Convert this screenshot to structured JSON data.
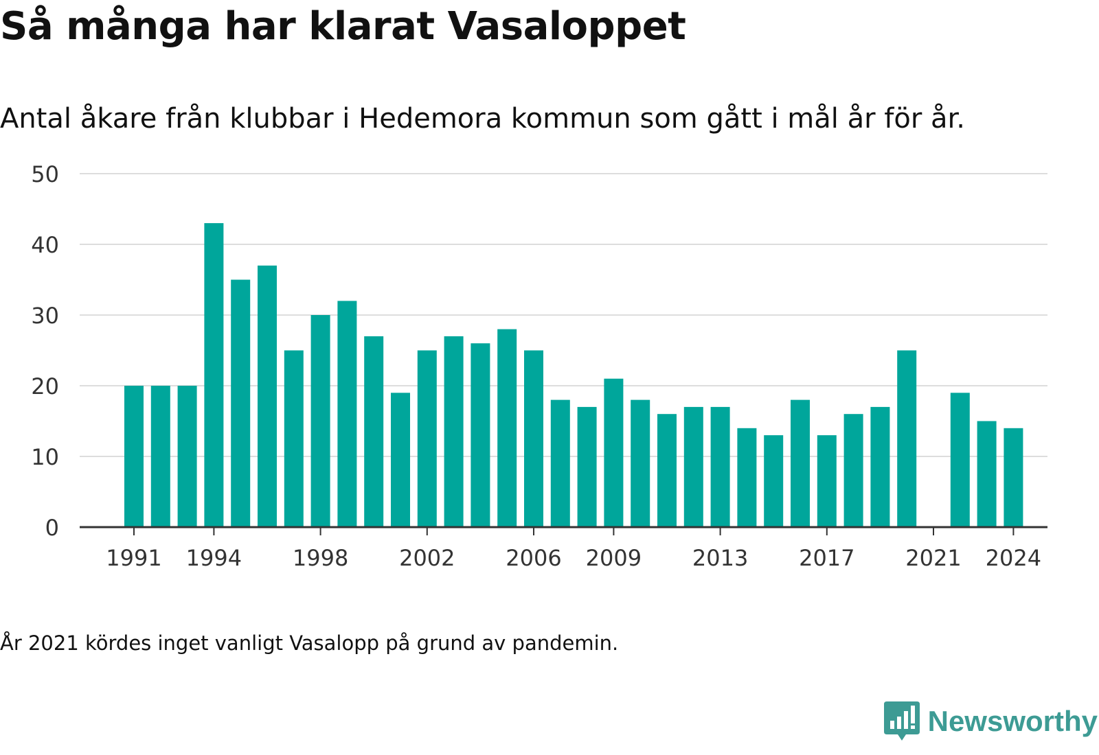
{
  "title": "Så många har klarat Vasaloppet",
  "subtitle": "Antal åkare från klubbar i Hedemora kommun som gått i mål år för år.",
  "note": "År 2021 kördes inget vanligt Vasalopp på grund av pandemin.",
  "brand": {
    "name": "Newsworthy",
    "icon": "newsworthy-logo-icon"
  },
  "colors": {
    "bar": "#00a69b",
    "grid": "#dddddd",
    "axis": "#333333",
    "brand": "#3d9b94"
  },
  "chart_data": {
    "type": "bar",
    "categories": [
      1991,
      1992,
      1993,
      1994,
      1995,
      1996,
      1997,
      1998,
      1999,
      2000,
      2001,
      2002,
      2003,
      2004,
      2005,
      2006,
      2007,
      2008,
      2009,
      2010,
      2011,
      2012,
      2013,
      2014,
      2015,
      2016,
      2017,
      2018,
      2019,
      2020,
      2021,
      2022,
      2023,
      2024
    ],
    "values": [
      20,
      20,
      20,
      43,
      35,
      37,
      25,
      30,
      32,
      27,
      19,
      25,
      27,
      26,
      28,
      25,
      18,
      17,
      21,
      18,
      16,
      17,
      17,
      14,
      13,
      18,
      13,
      16,
      17,
      25,
      null,
      19,
      15,
      14
    ],
    "x_ticks": [
      "1991",
      "1994",
      "1998",
      "2002",
      "2006",
      "2009",
      "2013",
      "2017",
      "2021",
      "2024"
    ],
    "y_ticks": [
      "0",
      "10",
      "20",
      "30",
      "40",
      "50"
    ],
    "ylim": [
      0,
      50
    ],
    "grid": true
  }
}
